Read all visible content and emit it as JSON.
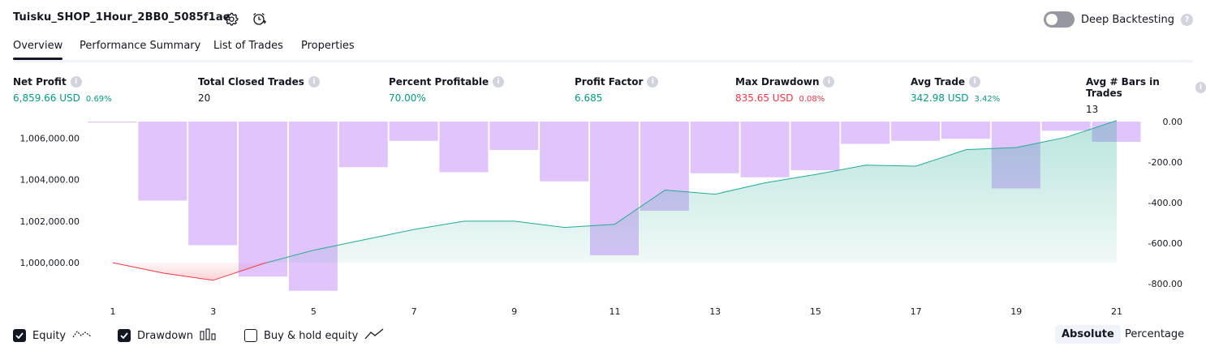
{
  "header": {
    "title": "Tuisku_SHOP_1Hour_2BB0_5085f1ae",
    "deep_backtesting_label": "Deep Backtesting"
  },
  "tabs": [
    {
      "label": "Overview",
      "active": true
    },
    {
      "label": "Performance Summary",
      "active": false
    },
    {
      "label": "List of Trades",
      "active": false
    },
    {
      "label": "Properties",
      "active": false
    }
  ],
  "metrics": [
    {
      "label": "Net Profit",
      "value": "6,859.66 USD",
      "pct": "0.69%",
      "tone": "pos"
    },
    {
      "label": "Total Closed Trades",
      "value": "20",
      "pct": "",
      "tone": "neutral"
    },
    {
      "label": "Percent Profitable",
      "value": "70.00%",
      "pct": "",
      "tone": "pos"
    },
    {
      "label": "Profit Factor",
      "value": "6.685",
      "pct": "",
      "tone": "pos"
    },
    {
      "label": "Max Drawdown",
      "value": "835.65 USD",
      "pct": "0.08%",
      "tone": "neg"
    },
    {
      "label": "Avg Trade",
      "value": "342.98 USD",
      "pct": "3.42%",
      "tone": "pos"
    },
    {
      "label": "Avg # Bars in Trades",
      "value": "13",
      "pct": "",
      "tone": "neutral"
    }
  ],
  "chart_data": {
    "type": "line",
    "x": [
      1,
      2,
      3,
      4,
      5,
      6,
      7,
      8,
      9,
      10,
      11,
      12,
      13,
      14,
      15,
      16,
      17,
      18,
      19,
      20,
      21
    ],
    "x_tick_labels": [
      "1",
      "3",
      "5",
      "7",
      "9",
      "11",
      "13",
      "15",
      "17",
      "19",
      "21"
    ],
    "y_left_ticks": [
      "1,006,000.00",
      "1,004,000.00",
      "1,002,000.00",
      "1,000,000.00"
    ],
    "y_right_ticks": [
      "0.00",
      "-200.00",
      "-400.00",
      "-600.00",
      "-800.00"
    ],
    "equity_ylim": [
      999300,
      1006800
    ],
    "drawdown_ylim": [
      -840,
      0
    ],
    "series": [
      {
        "name": "Equity",
        "values": [
          1000000,
          999500,
          999150,
          999960,
          1000600,
          1001100,
          1001600,
          1002000,
          1002000,
          1001700,
          1001850,
          1003500,
          1003300,
          1003850,
          1004250,
          1004700,
          1004650,
          1005450,
          1005550,
          1006050,
          1006850
        ]
      },
      {
        "name": "Drawdown",
        "values": [
          -5,
          -390,
          -610,
          -765,
          -835,
          -225,
          -95,
          -250,
          -140,
          -295,
          -660,
          -440,
          -255,
          -275,
          -240,
          -110,
          -95,
          -85,
          -330,
          -45,
          -100
        ]
      }
    ],
    "legend": [
      {
        "label": "Equity",
        "checked": true
      },
      {
        "label": "Drawdown",
        "checked": true
      },
      {
        "label": "Buy & hold equity",
        "checked": false
      }
    ]
  },
  "view_modes": [
    {
      "label": "Absolute",
      "selected": true
    },
    {
      "label": "Percentage",
      "selected": false
    }
  ],
  "colors": {
    "positive": "#089981",
    "negative": "#f23645",
    "drawdown_bar": "#e1c4fb",
    "equity_line": "#22ab94"
  }
}
